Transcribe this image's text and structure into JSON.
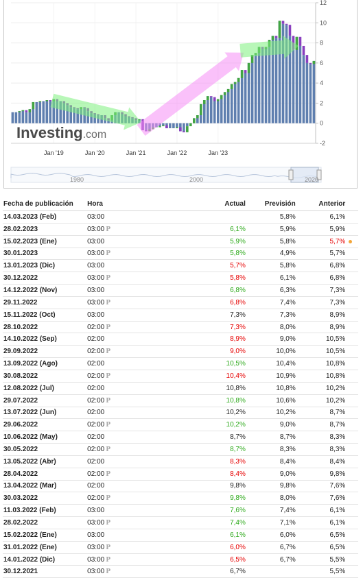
{
  "chart_data": {
    "type": "bar",
    "description_note": "",
    "x_ticks": [
      "Jan '19",
      "Jan '20",
      "Jan '21",
      "Jan '22",
      "Jan '23"
    ],
    "y_ticks": [
      -2,
      0,
      2,
      4,
      6,
      8,
      10,
      12
    ],
    "ylim": [
      -2,
      12
    ],
    "start": "2018-01",
    "values": [
      1.1,
      1.1,
      1.2,
      1.3,
      1.1,
      1.4,
      2.1,
      2.1,
      2.2,
      2.2,
      2.3,
      2.2,
      2.4,
      2.2,
      2.2,
      2.0,
      1.8,
      1.6,
      1.5,
      1.4,
      1.6,
      1.5,
      1.2,
      1.0,
      0.9,
      0.8,
      0.8,
      0.5,
      0.3,
      0.8,
      1.1,
      1.1,
      0.9,
      0.7,
      0.6,
      0.5,
      0.3,
      0.4,
      -0.7,
      -0.8,
      -0.6,
      -0.4,
      -0.4,
      -0.3,
      -0.2,
      -0.5,
      -0.5,
      -0.5,
      -0.4,
      -0.8,
      -0.9,
      -0.3,
      0.0,
      0.5,
      0.8,
      1.9,
      2.3,
      2.7,
      2.6,
      2.2,
      2.4,
      2.8,
      3.1,
      3.4,
      3.9,
      4.1,
      4.5,
      5.3,
      5.0,
      6.0,
      6.8,
      7.0,
      7.6,
      7.4,
      7.6,
      8.3,
      8.7,
      8.5,
      10.2,
      9.9,
      9.8,
      8.7,
      7.3,
      8.6,
      7.7,
      6.8,
      6.0,
      5.9,
      6.2
    ],
    "base_color": "#5f7faf",
    "up_color": "#42a542",
    "down_color": "#8a3fbf",
    "logo": "Investing",
    "logo_suffix": ".com",
    "navigator_ticks": [
      "1980",
      "2000",
      "2020"
    ]
  },
  "table": {
    "headers": {
      "date": "Fecha de publicación",
      "time": "Hora",
      "actual": "Actual",
      "forecast": "Previsión",
      "previous": "Anterior"
    },
    "rows": [
      {
        "date": "14.03.2023 (Feb)",
        "time": "03:00",
        "prelim": false,
        "actual": "",
        "actual_trend": "neu",
        "forecast": "5,8%",
        "previous": "6,1%",
        "previous_revised": false
      },
      {
        "date": "28.02.2023",
        "time": "03:00",
        "prelim": true,
        "actual": "6,1%",
        "actual_trend": "up",
        "forecast": "5,9%",
        "previous": "5,9%",
        "previous_revised": false
      },
      {
        "date": "15.02.2023 (Ene)",
        "time": "03:00",
        "prelim": false,
        "actual": "5,9%",
        "actual_trend": "up",
        "forecast": "5,8%",
        "previous": "5,7%",
        "previous_revised": true
      },
      {
        "date": "30.01.2023",
        "time": "03:00",
        "prelim": true,
        "actual": "5,8%",
        "actual_trend": "up",
        "forecast": "4,9%",
        "previous": "5,7%",
        "previous_revised": false
      },
      {
        "date": "13.01.2023 (Dic)",
        "time": "03:00",
        "prelim": false,
        "actual": "5,7%",
        "actual_trend": "down",
        "forecast": "5,8%",
        "previous": "6,8%",
        "previous_revised": false
      },
      {
        "date": "30.12.2022",
        "time": "03:00",
        "prelim": true,
        "actual": "5,8%",
        "actual_trend": "down",
        "forecast": "6,1%",
        "previous": "6,8%",
        "previous_revised": false
      },
      {
        "date": "14.12.2022 (Nov)",
        "time": "03:00",
        "prelim": false,
        "actual": "6,8%",
        "actual_trend": "up",
        "forecast": "6,3%",
        "previous": "7,3%",
        "previous_revised": false
      },
      {
        "date": "29.11.2022",
        "time": "03:00",
        "prelim": true,
        "actual": "6,8%",
        "actual_trend": "down",
        "forecast": "7,4%",
        "previous": "7,3%",
        "previous_revised": false
      },
      {
        "date": "15.11.2022 (Oct)",
        "time": "03:00",
        "prelim": false,
        "actual": "7,3%",
        "actual_trend": "neu",
        "forecast": "7,3%",
        "previous": "8,9%",
        "previous_revised": false
      },
      {
        "date": "28.10.2022",
        "time": "02:00",
        "prelim": true,
        "actual": "7,3%",
        "actual_trend": "down",
        "forecast": "8,0%",
        "previous": "8,9%",
        "previous_revised": false
      },
      {
        "date": "14.10.2022 (Sep)",
        "time": "02:00",
        "prelim": false,
        "actual": "8,9%",
        "actual_trend": "down",
        "forecast": "9,0%",
        "previous": "10,5%",
        "previous_revised": false
      },
      {
        "date": "29.09.2022",
        "time": "02:00",
        "prelim": true,
        "actual": "9,0%",
        "actual_trend": "down",
        "forecast": "10,0%",
        "previous": "10,5%",
        "previous_revised": false
      },
      {
        "date": "13.09.2022 (Ago)",
        "time": "02:00",
        "prelim": false,
        "actual": "10,5%",
        "actual_trend": "up",
        "forecast": "10,4%",
        "previous": "10,8%",
        "previous_revised": false
      },
      {
        "date": "30.08.2022",
        "time": "02:00",
        "prelim": true,
        "actual": "10,4%",
        "actual_trend": "down",
        "forecast": "10,9%",
        "previous": "10,8%",
        "previous_revised": false
      },
      {
        "date": "12.08.2022 (Jul)",
        "time": "02:00",
        "prelim": false,
        "actual": "10,8%",
        "actual_trend": "neu",
        "forecast": "10,8%",
        "previous": "10,2%",
        "previous_revised": false
      },
      {
        "date": "29.07.2022",
        "time": "02:00",
        "prelim": true,
        "actual": "10,8%",
        "actual_trend": "up",
        "forecast": "10,6%",
        "previous": "10,2%",
        "previous_revised": false
      },
      {
        "date": "13.07.2022 (Jun)",
        "time": "02:00",
        "prelim": false,
        "actual": "10,2%",
        "actual_trend": "neu",
        "forecast": "10,2%",
        "previous": "8,7%",
        "previous_revised": false
      },
      {
        "date": "29.06.2022",
        "time": "02:00",
        "prelim": true,
        "actual": "10,2%",
        "actual_trend": "up",
        "forecast": "9,0%",
        "previous": "8,7%",
        "previous_revised": false
      },
      {
        "date": "10.06.2022 (May)",
        "time": "02:00",
        "prelim": false,
        "actual": "8,7%",
        "actual_trend": "neu",
        "forecast": "8,7%",
        "previous": "8,3%",
        "previous_revised": false
      },
      {
        "date": "30.05.2022",
        "time": "02:00",
        "prelim": true,
        "actual": "8,7%",
        "actual_trend": "up",
        "forecast": "8,3%",
        "previous": "8,3%",
        "previous_revised": false
      },
      {
        "date": "13.05.2022 (Abr)",
        "time": "02:00",
        "prelim": false,
        "actual": "8,3%",
        "actual_trend": "down",
        "forecast": "8,4%",
        "previous": "8,4%",
        "previous_revised": false
      },
      {
        "date": "28.04.2022",
        "time": "02:00",
        "prelim": true,
        "actual": "8,4%",
        "actual_trend": "down",
        "forecast": "9,0%",
        "previous": "9,8%",
        "previous_revised": false
      },
      {
        "date": "13.04.2022 (Mar)",
        "time": "02:00",
        "prelim": false,
        "actual": "9,8%",
        "actual_trend": "neu",
        "forecast": "9,8%",
        "previous": "7,6%",
        "previous_revised": false
      },
      {
        "date": "30.03.2022",
        "time": "02:00",
        "prelim": true,
        "actual": "9,8%",
        "actual_trend": "up",
        "forecast": "8,0%",
        "previous": "7,6%",
        "previous_revised": false
      },
      {
        "date": "11.03.2022 (Feb)",
        "time": "03:00",
        "prelim": false,
        "actual": "7,6%",
        "actual_trend": "up",
        "forecast": "7,4%",
        "previous": "6,1%",
        "previous_revised": false
      },
      {
        "date": "28.02.2022",
        "time": "03:00",
        "prelim": true,
        "actual": "7,4%",
        "actual_trend": "up",
        "forecast": "7,1%",
        "previous": "6,1%",
        "previous_revised": false
      },
      {
        "date": "15.02.2022 (Ene)",
        "time": "03:00",
        "prelim": false,
        "actual": "6,1%",
        "actual_trend": "up",
        "forecast": "6,0%",
        "previous": "6,5%",
        "previous_revised": false
      },
      {
        "date": "31.01.2022 (Ene)",
        "time": "03:00",
        "prelim": true,
        "actual": "6,0%",
        "actual_trend": "down",
        "forecast": "6,7%",
        "previous": "6,5%",
        "previous_revised": false
      },
      {
        "date": "14.01.2022 (Dic)",
        "time": "03:00",
        "prelim": true,
        "actual": "6,5%",
        "actual_trend": "down",
        "forecast": "6,7%",
        "previous": "5,5%",
        "previous_revised": false
      },
      {
        "date": "30.12.2021",
        "time": "03:00",
        "prelim": true,
        "actual": "6,7%",
        "actual_trend": "neu",
        "forecast": "",
        "previous": "5,5%",
        "previous_revised": false
      }
    ],
    "prelim_badge": "P"
  }
}
